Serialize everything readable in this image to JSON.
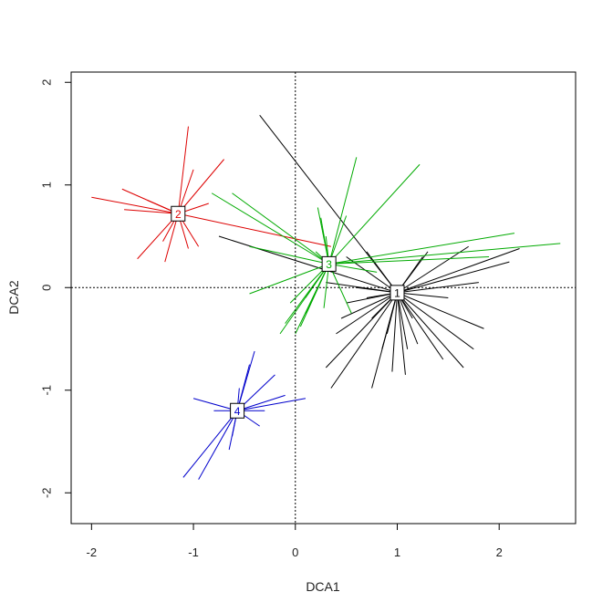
{
  "chart_data": {
    "type": "scatter",
    "subtype": "spider-plot",
    "title": "",
    "xlabel": "DCA1",
    "ylabel": "DCA2",
    "xlim": [
      -2.2,
      2.75
    ],
    "ylim": [
      -2.3,
      2.1
    ],
    "xticks": [
      -2,
      -1,
      0,
      1,
      2
    ],
    "yticks": [
      -2,
      -1,
      0,
      1,
      2
    ],
    "xtick_labels": [
      "-2",
      "-1",
      "0",
      "1",
      "2"
    ],
    "ytick_labels": [
      "-2",
      "-1",
      "0",
      "1",
      "2"
    ],
    "reference_lines": {
      "x": 0,
      "y": 0,
      "style": "dotted"
    },
    "grid": false,
    "groups": [
      {
        "label": "1",
        "color": "#000000",
        "centroid": [
          1.0,
          -0.05
        ],
        "points": [
          [
            -0.35,
            1.68
          ],
          [
            -0.75,
            0.5
          ],
          [
            0.3,
            0.05
          ],
          [
            0.5,
            0.3
          ],
          [
            0.7,
            0.35
          ],
          [
            1.3,
            0.35
          ],
          [
            1.7,
            0.4
          ],
          [
            2.2,
            0.38
          ],
          [
            2.1,
            0.25
          ],
          [
            1.8,
            0.05
          ],
          [
            1.5,
            -0.1
          ],
          [
            1.85,
            -0.4
          ],
          [
            1.75,
            -0.6
          ],
          [
            1.65,
            -0.78
          ],
          [
            1.45,
            -0.7
          ],
          [
            1.2,
            -0.55
          ],
          [
            1.1,
            -0.6
          ],
          [
            1.08,
            -0.85
          ],
          [
            0.95,
            -0.82
          ],
          [
            0.85,
            -0.6
          ],
          [
            0.75,
            -0.98
          ],
          [
            0.35,
            -0.98
          ],
          [
            0.3,
            -0.78
          ],
          [
            0.4,
            -0.45
          ],
          [
            0.45,
            -0.3
          ],
          [
            0.5,
            -0.15
          ],
          [
            0.7,
            -0.1
          ],
          [
            0.75,
            -0.3
          ],
          [
            0.6,
            0.0
          ],
          [
            1.25,
            0.3
          ],
          [
            1.15,
            -0.3
          ],
          [
            0.9,
            -0.45
          ]
        ]
      },
      {
        "label": "2",
        "color": "#dd0000",
        "centroid": [
          -1.15,
          0.72
        ],
        "points": [
          [
            -2.0,
            0.88
          ],
          [
            -1.7,
            0.96
          ],
          [
            -1.68,
            0.76
          ],
          [
            -1.45,
            0.85
          ],
          [
            -1.55,
            0.28
          ],
          [
            -1.3,
            0.45
          ],
          [
            -1.28,
            0.25
          ],
          [
            -1.05,
            1.57
          ],
          [
            -1.0,
            1.15
          ],
          [
            -1.05,
            0.38
          ],
          [
            -0.95,
            0.4
          ],
          [
            -0.7,
            1.25
          ],
          [
            -0.85,
            0.82
          ],
          [
            0.35,
            0.4
          ]
        ]
      },
      {
        "label": "3",
        "color": "#00aa00",
        "centroid": [
          0.33,
          0.23
        ],
        "points": [
          [
            -0.82,
            0.92
          ],
          [
            -0.62,
            0.92
          ],
          [
            -0.45,
            0.4
          ],
          [
            -0.45,
            -0.06
          ],
          [
            -0.15,
            -0.45
          ],
          [
            -0.1,
            -0.35
          ],
          [
            0.0,
            -0.45
          ],
          [
            0.05,
            -0.38
          ],
          [
            -0.05,
            -0.15
          ],
          [
            0.1,
            -0.1
          ],
          [
            0.22,
            0.78
          ],
          [
            0.25,
            0.68
          ],
          [
            0.3,
            0.5
          ],
          [
            0.28,
            -0.2
          ],
          [
            0.6,
            1.27
          ],
          [
            0.5,
            0.7
          ],
          [
            0.55,
            -0.25
          ],
          [
            1.22,
            1.2
          ],
          [
            2.15,
            0.53
          ],
          [
            2.6,
            0.43
          ],
          [
            1.9,
            0.3
          ],
          [
            0.8,
            0.15
          ],
          [
            0.2,
            0.35
          ],
          [
            0.1,
            -0.25
          ]
        ]
      },
      {
        "label": "4",
        "color": "#0000cc",
        "centroid": [
          -0.57,
          -1.2
        ],
        "points": [
          [
            -1.1,
            -1.85
          ],
          [
            -0.95,
            -1.87
          ],
          [
            -0.65,
            -1.58
          ],
          [
            -1.0,
            -1.08
          ],
          [
            -0.8,
            -1.2
          ],
          [
            -0.3,
            -1.2
          ],
          [
            0.1,
            -1.08
          ],
          [
            -0.1,
            -1.05
          ],
          [
            -0.4,
            -0.62
          ],
          [
            -0.45,
            -0.75
          ],
          [
            -0.2,
            -0.85
          ],
          [
            -0.55,
            -0.98
          ],
          [
            -0.62,
            -1.45
          ],
          [
            -0.35,
            -1.35
          ]
        ]
      }
    ]
  }
}
